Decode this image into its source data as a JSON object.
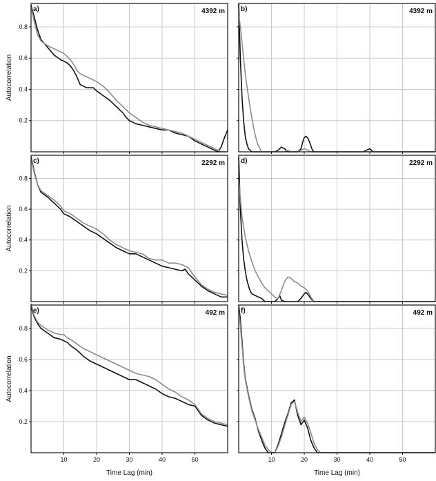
{
  "figure": {
    "ylabel": "Autocorrelation",
    "xlabel": "Time Lag (min)",
    "series_colors": {
      "black": "#111111",
      "gray": "#8c8c8c"
    }
  },
  "chart_data": [
    {
      "type": "line",
      "panel": "a)",
      "depth_label": "4392 m",
      "xlim": [
        0,
        60
      ],
      "ylim": [
        0,
        0.95
      ],
      "xticks": [
        10,
        20,
        30,
        40,
        50
      ],
      "yticks": [
        0.2,
        0.4,
        0.6,
        0.8
      ],
      "series": [
        {
          "color": "#111111",
          "x": [
            0,
            1,
            2,
            3,
            5,
            7,
            9,
            10,
            11,
            12,
            13,
            14,
            15,
            17,
            19,
            20,
            22,
            24,
            26,
            28,
            29,
            30,
            32,
            34,
            36,
            38,
            40,
            42,
            43,
            44,
            46,
            48,
            50,
            52,
            54,
            55,
            56,
            57,
            58,
            59,
            60
          ],
          "y": [
            0.94,
            0.86,
            0.78,
            0.72,
            0.67,
            0.62,
            0.59,
            0.58,
            0.57,
            0.55,
            0.52,
            0.48,
            0.43,
            0.41,
            0.41,
            0.39,
            0.36,
            0.33,
            0.29,
            0.25,
            0.22,
            0.2,
            0.18,
            0.17,
            0.16,
            0.15,
            0.14,
            0.14,
            0.13,
            0.12,
            0.11,
            0.1,
            0.07,
            0.05,
            0.03,
            0.02,
            0.01,
            0.0,
            0.03,
            0.09,
            0.14
          ]
        },
        {
          "color": "#8c8c8c",
          "x": [
            0,
            1,
            2,
            3,
            5,
            7,
            9,
            10,
            11,
            12,
            13,
            14,
            15,
            16,
            17,
            18,
            20,
            22,
            24,
            26,
            28,
            30,
            32,
            34,
            36,
            38,
            40,
            42,
            44,
            46,
            48,
            50,
            52,
            54,
            56,
            58,
            59,
            60
          ],
          "y": [
            0.93,
            0.83,
            0.75,
            0.71,
            0.68,
            0.66,
            0.64,
            0.63,
            0.61,
            0.59,
            0.56,
            0.52,
            0.5,
            0.49,
            0.48,
            0.47,
            0.45,
            0.42,
            0.38,
            0.33,
            0.29,
            0.25,
            0.22,
            0.19,
            0.17,
            0.16,
            0.15,
            0.14,
            0.13,
            0.12,
            0.1,
            0.08,
            0.06,
            0.04,
            0.02,
            0.0,
            0.0,
            0.0
          ]
        }
      ]
    },
    {
      "type": "line",
      "panel": "b)",
      "depth_label": "4392 m",
      "xlim": [
        0,
        60
      ],
      "ylim": [
        0,
        0.95
      ],
      "xticks": [
        10,
        20,
        30,
        40,
        50
      ],
      "yticks": [
        0.2,
        0.4,
        0.6,
        0.8
      ],
      "series": [
        {
          "color": "#111111",
          "x": [
            0,
            0.5,
            1,
            1.5,
            2,
            2.5,
            3,
            3.5,
            4,
            4.5,
            5,
            6,
            8,
            10,
            11,
            12,
            13,
            14,
            15,
            16,
            17,
            18,
            19,
            19.5,
            20,
            20.5,
            21,
            21.5,
            22,
            22.5,
            23,
            24,
            26,
            30,
            35,
            38,
            39,
            40,
            41,
            45,
            50,
            55,
            60
          ],
          "y": [
            0.95,
            0.6,
            0.35,
            0.2,
            0.1,
            0.05,
            0.02,
            0.01,
            0.0,
            0.0,
            0.0,
            0.0,
            0.0,
            0.0,
            0.0,
            0.01,
            0.03,
            0.02,
            0.0,
            0.0,
            0.0,
            0.0,
            0.02,
            0.06,
            0.09,
            0.1,
            0.09,
            0.07,
            0.04,
            0.01,
            0.0,
            0.0,
            0.0,
            0.0,
            0.0,
            0.0,
            0.01,
            0.02,
            0.0,
            0.0,
            0.0,
            0.0,
            0.0
          ]
        },
        {
          "color": "#8c8c8c",
          "x": [
            0,
            0.5,
            1,
            1.5,
            2,
            2.5,
            3,
            3.5,
            4,
            4.5,
            5,
            5.5,
            6,
            6.5,
            7,
            8,
            10,
            12,
            14,
            15,
            16,
            18,
            20,
            21,
            22,
            25,
            30,
            40,
            50,
            60
          ],
          "y": [
            0.88,
            0.8,
            0.7,
            0.6,
            0.5,
            0.42,
            0.35,
            0.28,
            0.22,
            0.16,
            0.11,
            0.07,
            0.04,
            0.02,
            0.0,
            0.0,
            0.0,
            0.0,
            0.0,
            0.01,
            0.0,
            0.0,
            0.02,
            0.01,
            0.0,
            0.0,
            0.0,
            0.0,
            0.0,
            0.0
          ]
        }
      ]
    },
    {
      "type": "line",
      "panel": "c)",
      "depth_label": "2292 m",
      "xlim": [
        0,
        60
      ],
      "ylim": [
        0,
        0.95
      ],
      "xticks": [
        10,
        20,
        30,
        40,
        50
      ],
      "yticks": [
        0.2,
        0.4,
        0.6,
        0.8
      ],
      "series": [
        {
          "color": "#111111",
          "x": [
            0,
            1,
            2,
            3,
            5,
            7,
            9,
            10,
            11,
            12,
            14,
            16,
            18,
            20,
            22,
            24,
            26,
            28,
            30,
            32,
            34,
            36,
            38,
            40,
            42,
            44,
            46,
            47,
            48,
            50,
            52,
            54,
            56,
            58,
            60
          ],
          "y": [
            0.94,
            0.84,
            0.76,
            0.71,
            0.68,
            0.64,
            0.6,
            0.57,
            0.56,
            0.55,
            0.52,
            0.49,
            0.46,
            0.44,
            0.41,
            0.38,
            0.35,
            0.33,
            0.31,
            0.31,
            0.29,
            0.27,
            0.25,
            0.23,
            0.22,
            0.21,
            0.2,
            0.21,
            0.18,
            0.14,
            0.1,
            0.07,
            0.05,
            0.03,
            0.03
          ]
        },
        {
          "color": "#8c8c8c",
          "x": [
            0,
            1,
            2,
            3,
            5,
            7,
            9,
            10,
            12,
            14,
            16,
            18,
            20,
            22,
            24,
            26,
            28,
            30,
            32,
            34,
            36,
            38,
            40,
            42,
            44,
            46,
            48,
            50,
            52,
            54,
            56,
            58,
            60
          ],
          "y": [
            0.93,
            0.83,
            0.76,
            0.72,
            0.69,
            0.66,
            0.62,
            0.59,
            0.57,
            0.54,
            0.51,
            0.49,
            0.47,
            0.44,
            0.4,
            0.37,
            0.35,
            0.33,
            0.32,
            0.31,
            0.28,
            0.27,
            0.27,
            0.25,
            0.25,
            0.24,
            0.22,
            0.16,
            0.11,
            0.08,
            0.06,
            0.05,
            0.04
          ]
        }
      ]
    },
    {
      "type": "line",
      "panel": "d)",
      "depth_label": "2292 m",
      "xlim": [
        0,
        60
      ],
      "ylim": [
        0,
        0.95
      ],
      "xticks": [
        10,
        20,
        30,
        40,
        50
      ],
      "yticks": [
        0.2,
        0.4,
        0.6,
        0.8
      ],
      "series": [
        {
          "color": "#111111",
          "x": [
            0,
            0.5,
            1,
            1.5,
            2,
            2.5,
            3,
            3.5,
            4,
            5,
            6,
            7,
            8,
            9,
            10,
            11,
            12,
            12.5,
            13,
            14,
            15,
            16,
            17,
            18,
            19,
            20,
            20.5,
            21,
            22,
            23,
            25,
            30,
            40,
            50,
            60
          ],
          "y": [
            0.94,
            0.6,
            0.4,
            0.28,
            0.2,
            0.14,
            0.1,
            0.07,
            0.05,
            0.04,
            0.03,
            0.02,
            0.0,
            0.0,
            0.0,
            0.0,
            0.02,
            0.04,
            0.01,
            0.0,
            0.0,
            0.0,
            0.0,
            0.0,
            0.02,
            0.05,
            0.06,
            0.05,
            0.02,
            0.0,
            0.0,
            0.0,
            0.0,
            0.0,
            0.0
          ]
        },
        {
          "color": "#8c8c8c",
          "x": [
            0,
            1,
            2,
            3,
            4,
            5,
            6,
            7,
            8,
            9,
            10,
            11,
            12,
            13,
            14,
            15,
            16,
            17,
            18,
            19,
            20,
            21,
            22,
            23,
            25,
            30,
            40,
            50,
            60
          ],
          "y": [
            0.8,
            0.55,
            0.42,
            0.33,
            0.26,
            0.2,
            0.16,
            0.12,
            0.09,
            0.07,
            0.05,
            0.03,
            0.02,
            0.07,
            0.13,
            0.16,
            0.15,
            0.13,
            0.12,
            0.1,
            0.09,
            0.07,
            0.03,
            0.0,
            0.0,
            0.0,
            0.0,
            0.0,
            0.0
          ]
        }
      ]
    },
    {
      "type": "line",
      "panel": "e)",
      "depth_label": "492 m",
      "xlim": [
        0,
        60
      ],
      "ylim": [
        0,
        0.95
      ],
      "xticks": [
        10,
        20,
        30,
        40,
        50
      ],
      "yticks": [
        0.2,
        0.4,
        0.6,
        0.8
      ],
      "series": [
        {
          "color": "#111111",
          "x": [
            0,
            1,
            2,
            3,
            5,
            7,
            9,
            10,
            11,
            12,
            14,
            16,
            18,
            20,
            22,
            24,
            26,
            28,
            30,
            32,
            34,
            36,
            38,
            40,
            42,
            44,
            46,
            48,
            50,
            52,
            54,
            56,
            58,
            60
          ],
          "y": [
            0.94,
            0.87,
            0.83,
            0.8,
            0.77,
            0.74,
            0.73,
            0.72,
            0.71,
            0.69,
            0.66,
            0.62,
            0.59,
            0.57,
            0.55,
            0.53,
            0.51,
            0.49,
            0.47,
            0.47,
            0.45,
            0.43,
            0.41,
            0.38,
            0.36,
            0.35,
            0.33,
            0.31,
            0.3,
            0.24,
            0.21,
            0.19,
            0.18,
            0.17
          ]
        },
        {
          "color": "#8c8c8c",
          "x": [
            0,
            1,
            2,
            3,
            5,
            7,
            9,
            10,
            11,
            12,
            14,
            16,
            18,
            20,
            22,
            24,
            26,
            28,
            30,
            32,
            34,
            36,
            38,
            40,
            42,
            44,
            46,
            48,
            50,
            52,
            54,
            56,
            58,
            60
          ],
          "y": [
            0.96,
            0.88,
            0.84,
            0.82,
            0.79,
            0.77,
            0.76,
            0.76,
            0.74,
            0.73,
            0.7,
            0.67,
            0.65,
            0.63,
            0.61,
            0.59,
            0.57,
            0.55,
            0.53,
            0.51,
            0.5,
            0.49,
            0.47,
            0.44,
            0.41,
            0.39,
            0.36,
            0.34,
            0.31,
            0.25,
            0.22,
            0.2,
            0.19,
            0.18
          ]
        }
      ]
    },
    {
      "type": "line",
      "panel": "f)",
      "depth_label": "492 m",
      "xlim": [
        0,
        60
      ],
      "ylim": [
        0,
        0.95
      ],
      "xticks": [
        10,
        20,
        30,
        40,
        50
      ],
      "yticks": [
        0.2,
        0.4,
        0.6,
        0.8
      ],
      "series": [
        {
          "color": "#111111",
          "x": [
            0,
            0.5,
            1,
            1.5,
            2,
            3,
            4,
            5,
            6,
            7,
            8,
            9,
            10,
            11,
            12,
            13,
            14,
            15,
            16,
            17,
            18,
            19,
            20,
            21,
            22,
            23,
            24,
            25,
            30,
            40,
            50,
            60
          ],
          "y": [
            0.95,
            0.86,
            0.72,
            0.58,
            0.48,
            0.37,
            0.28,
            0.22,
            0.14,
            0.08,
            0.03,
            0.0,
            0.0,
            0.0,
            0.05,
            0.12,
            0.19,
            0.25,
            0.32,
            0.34,
            0.24,
            0.18,
            0.21,
            0.16,
            0.08,
            0.03,
            0.0,
            0.0,
            0.0,
            0.0,
            0.0,
            0.0
          ]
        },
        {
          "color": "#8c8c8c",
          "x": [
            0,
            0.5,
            1,
            1.5,
            2,
            3,
            4,
            5,
            6,
            7,
            8,
            9,
            10,
            11,
            12,
            13,
            14,
            15,
            16,
            17,
            18,
            19,
            20,
            21,
            22,
            23,
            24,
            25,
            30,
            40,
            50,
            60
          ],
          "y": [
            0.92,
            0.82,
            0.69,
            0.56,
            0.47,
            0.36,
            0.27,
            0.21,
            0.15,
            0.1,
            0.05,
            0.02,
            0.0,
            0.0,
            0.04,
            0.1,
            0.17,
            0.24,
            0.31,
            0.33,
            0.26,
            0.2,
            0.23,
            0.19,
            0.13,
            0.06,
            0.02,
            0.0,
            0.0,
            0.0,
            0.0,
            0.0
          ]
        }
      ]
    }
  ]
}
